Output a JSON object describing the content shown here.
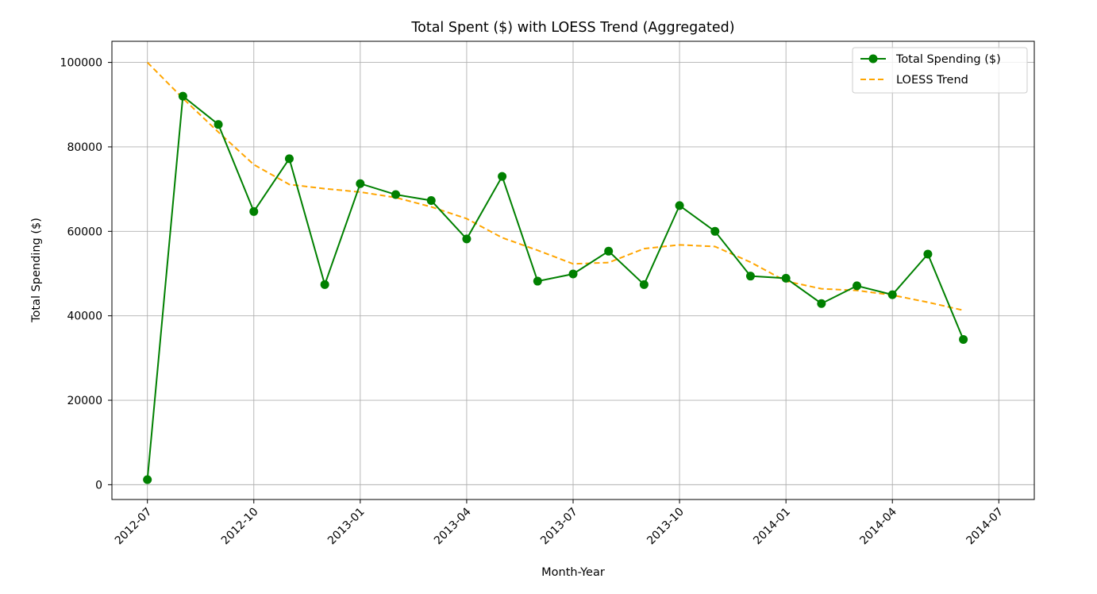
{
  "chart_data": {
    "type": "line",
    "title": "Total Spent ($) with LOESS Trend (Aggregated)",
    "xlabel": "Month-Year",
    "ylabel": "Total Spending ($)",
    "x_type": "date",
    "x": [
      "2012-07",
      "2012-08",
      "2012-09",
      "2012-10",
      "2012-11",
      "2012-12",
      "2013-01",
      "2013-02",
      "2013-03",
      "2013-04",
      "2013-05",
      "2013-06",
      "2013-07",
      "2013-08",
      "2013-09",
      "2013-10",
      "2013-11",
      "2013-12",
      "2014-01",
      "2014-02",
      "2014-03",
      "2014-04",
      "2014-05",
      "2014-06"
    ],
    "xticks": [
      "2012-07",
      "2012-10",
      "2013-01",
      "2013-04",
      "2013-07",
      "2013-10",
      "2014-01",
      "2014-04",
      "2014-07"
    ],
    "xlim": [
      "2012-06",
      "2014-08"
    ],
    "yticks": [
      0,
      20000,
      40000,
      60000,
      80000,
      100000
    ],
    "ylim": [
      -3500,
      105000
    ],
    "grid": true,
    "legend_position": "top-right",
    "series": [
      {
        "name": "Total Spending ($)",
        "style": "solid-line-with-circle-markers",
        "color": "#008000",
        "values": [
          1200,
          92000,
          85300,
          64700,
          77200,
          47400,
          71300,
          68700,
          67300,
          58200,
          73000,
          48200,
          49900,
          55300,
          47400,
          66100,
          60000,
          49400,
          48900,
          42900,
          47100,
          45000,
          54600,
          34400
        ]
      },
      {
        "name": "LOESS Trend",
        "style": "dashed-line",
        "color": "#FFA500",
        "values": [
          100000,
          91500,
          83500,
          75800,
          71100,
          70100,
          69300,
          68000,
          65800,
          63000,
          58500,
          55500,
          52300,
          52600,
          55900,
          56800,
          56400,
          52700,
          48200,
          46400,
          46000,
          44900,
          43200,
          41300
        ]
      }
    ]
  }
}
